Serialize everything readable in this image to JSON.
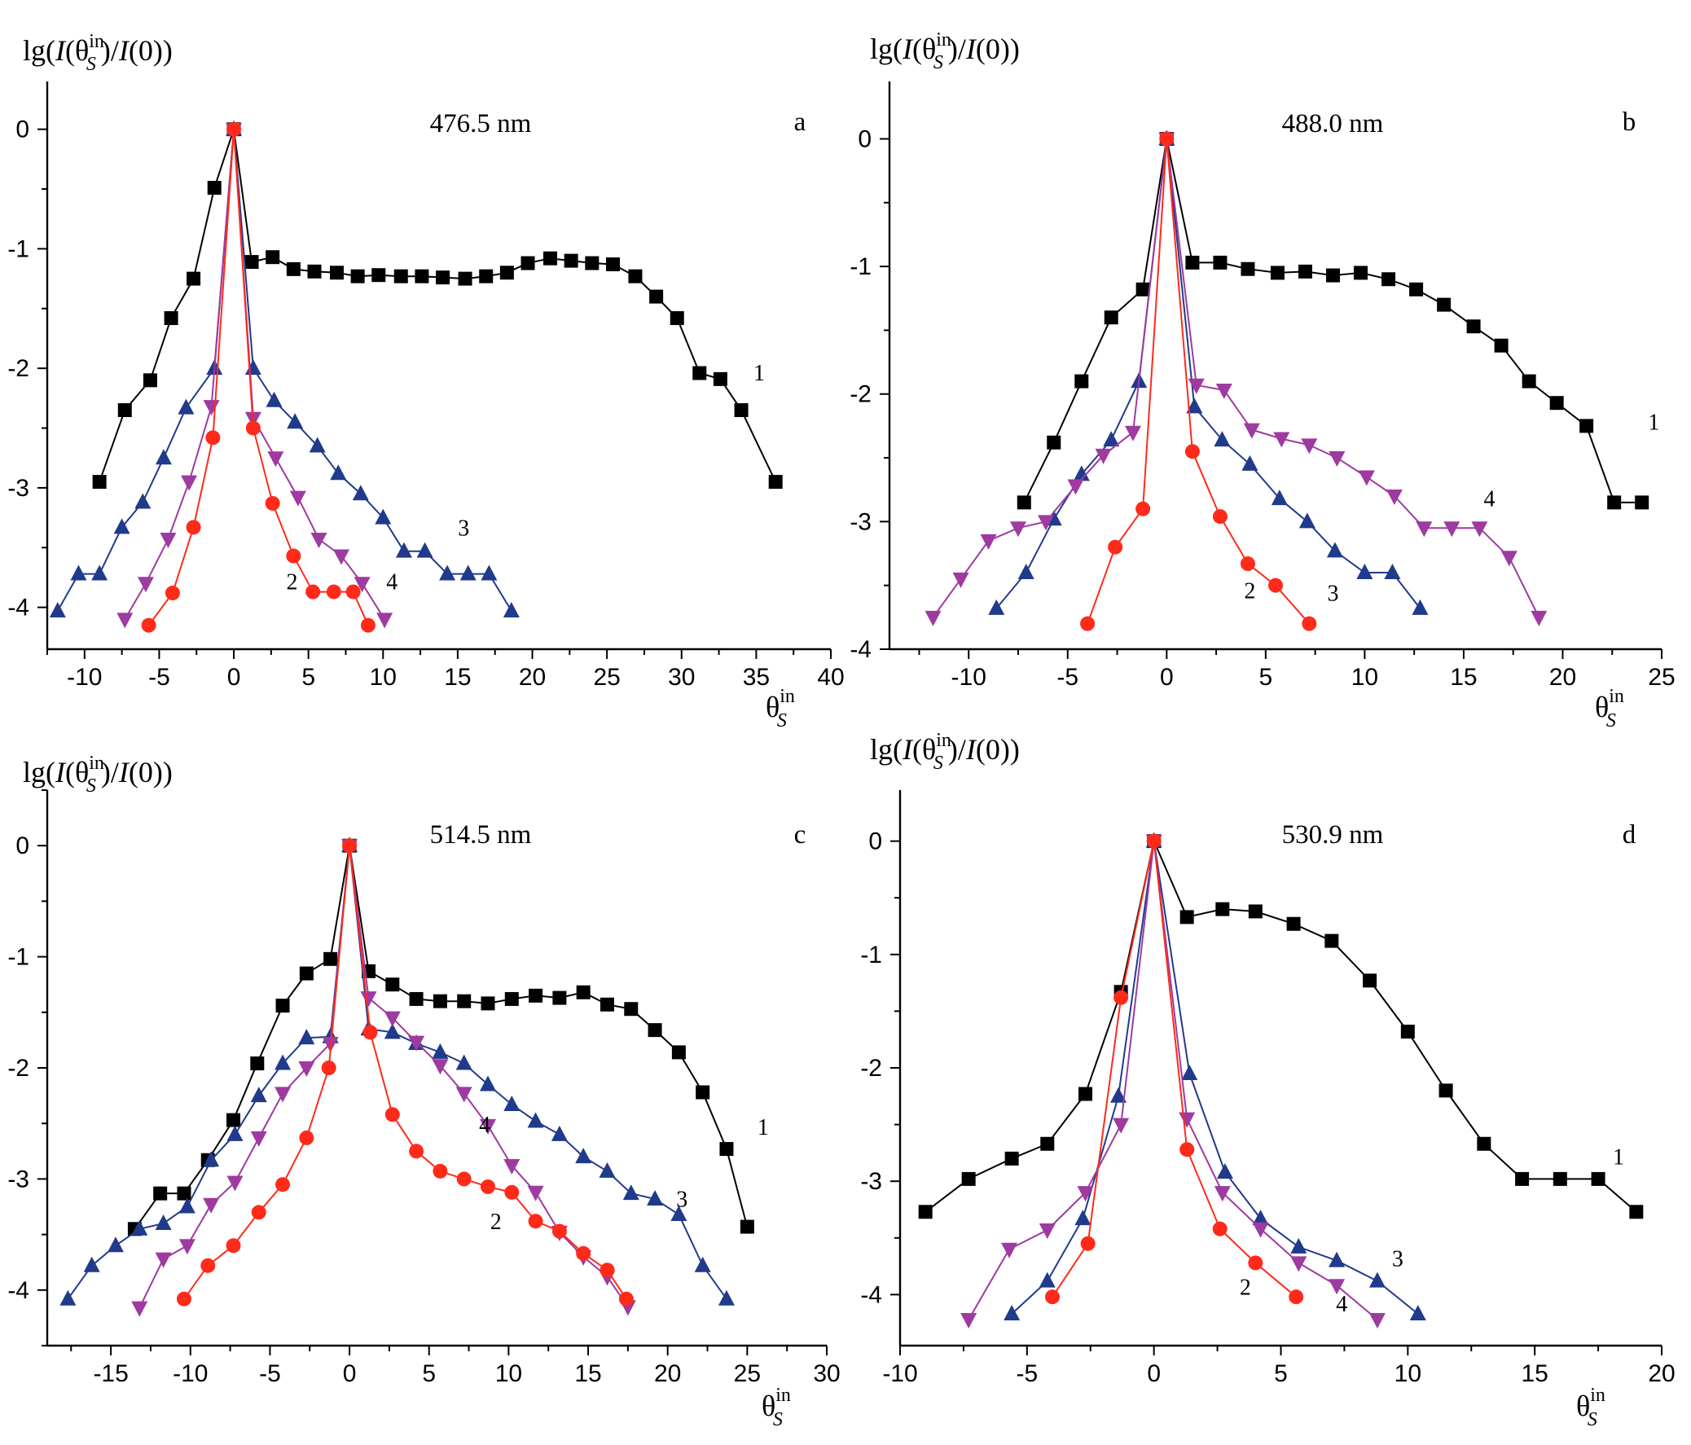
{
  "chart_data": [
    {
      "type": "line",
      "panel_letter": "a",
      "wavelength_label": "476.5 nm",
      "ylabel": {
        "prefix": "lg(",
        "italic_I": "I",
        "open": "(θ",
        "sup": "in",
        "sub": "S",
        "close": ")/",
        "italic_I2": "I",
        "tail": "(0))"
      },
      "xlabel": {
        "base": "θ",
        "sup": "in",
        "sub": "S"
      },
      "xlim": [
        -12.5,
        40
      ],
      "ylim": [
        -4.35,
        0.4
      ],
      "xticks": [
        -10,
        -5,
        0,
        5,
        10,
        15,
        20,
        25,
        30,
        35,
        40
      ],
      "xtick_labels": [
        "-10",
        "-5",
        "0",
        "5",
        "10",
        "15",
        "20",
        "25",
        "30",
        "35",
        "40"
      ],
      "yticks": [
        0,
        -1,
        -2,
        -3,
        -4
      ],
      "ytick_labels": [
        "0",
        "-1",
        "-2",
        "-3",
        "-4"
      ],
      "series": [
        {
          "name": "1",
          "color": "#000000",
          "marker": "square",
          "x": [
            -9,
            -7.3,
            -5.6,
            -4.2,
            -2.7,
            -1.3,
            0,
            1.2,
            2.6,
            4,
            5.4,
            6.9,
            8.3,
            9.7,
            11.2,
            12.6,
            14,
            15.5,
            16.9,
            18.3,
            19.7,
            21.2,
            22.6,
            24,
            25.4,
            26.9,
            28.3,
            29.7,
            31.2,
            32.6,
            34,
            36.3
          ],
          "y": [
            -2.95,
            -2.35,
            -2.1,
            -1.58,
            -1.25,
            -0.49,
            0,
            -1.11,
            -1.07,
            -1.17,
            -1.19,
            -1.2,
            -1.23,
            -1.22,
            -1.23,
            -1.23,
            -1.24,
            -1.25,
            -1.23,
            -1.2,
            -1.12,
            -1.08,
            -1.1,
            -1.12,
            -1.13,
            -1.23,
            -1.4,
            -1.58,
            -2.04,
            -2.09,
            -2.35,
            -2.95
          ]
        },
        {
          "name": "2",
          "color": "#ff2a1a",
          "marker": "circle",
          "x": [
            -5.7,
            -4.1,
            -2.7,
            -1.4,
            0,
            1.3,
            2.6,
            4,
            5.3,
            6.7,
            8,
            9
          ],
          "y": [
            -4.15,
            -3.88,
            -3.33,
            -2.58,
            0,
            -2.5,
            -3.13,
            -3.57,
            -3.87,
            -3.87,
            -3.87,
            -4.15
          ]
        },
        {
          "name": "3",
          "color": "#203a8c",
          "marker": "triangle-up",
          "x": [
            -11.8,
            -10.4,
            -9,
            -7.5,
            -6.1,
            -4.7,
            -3.2,
            -1.3,
            0,
            1.3,
            2.7,
            4.1,
            5.6,
            7,
            8.5,
            10,
            11.4,
            12.8,
            14.3,
            15.7,
            17.1,
            18.6
          ],
          "y": [
            -4.03,
            -3.72,
            -3.72,
            -3.33,
            -3.12,
            -2.75,
            -2.33,
            -2.0,
            0,
            -2.0,
            -2.27,
            -2.45,
            -2.65,
            -2.88,
            -3.05,
            -3.25,
            -3.53,
            -3.53,
            -3.72,
            -3.72,
            -3.72,
            -4.03
          ]
        },
        {
          "name": "4",
          "color": "#9e3aa0",
          "marker": "triangle-down",
          "x": [
            -7.3,
            -5.9,
            -4.4,
            -3,
            -1.5,
            0,
            1.3,
            2.8,
            4.3,
            5.7,
            7.2,
            8.6,
            10.1
          ],
          "y": [
            -4.1,
            -3.8,
            -3.43,
            -2.95,
            -2.32,
            0,
            -2.42,
            -2.75,
            -3.08,
            -3.43,
            -3.57,
            -3.8,
            -4.1
          ]
        }
      ],
      "series_labels": [
        {
          "text": "1",
          "x": 35.2,
          "y": -2.1
        },
        {
          "text": "2",
          "x": 3.9,
          "y": -3.85
        },
        {
          "text": "3",
          "x": 15.4,
          "y": -3.4
        },
        {
          "text": "4",
          "x": 10.6,
          "y": -3.85
        }
      ]
    },
    {
      "type": "line",
      "panel_letter": "b",
      "wavelength_label": "488.0 nm",
      "ylabel": {
        "prefix": "lg(",
        "italic_I": "I",
        "open": "(θ",
        "sup": "in",
        "sub": "S",
        "close": ")/",
        "italic_I2": "I",
        "tail": "(0))"
      },
      "xlabel": {
        "base": "θ",
        "sup": "in",
        "sub": "S"
      },
      "xlim": [
        -14,
        25
      ],
      "ylim": [
        -4.0,
        0.45
      ],
      "xticks": [
        -10,
        -5,
        0,
        5,
        10,
        15,
        20,
        25
      ],
      "xtick_labels": [
        "-10",
        "-5",
        "0",
        "5",
        "10",
        "15",
        "20",
        "25"
      ],
      "yticks": [
        0,
        -1,
        -2,
        -3,
        -4
      ],
      "ytick_labels": [
        "0",
        "-1",
        "-2",
        "-3",
        "-4"
      ],
      "series": [
        {
          "name": "1",
          "color": "#000000",
          "marker": "square",
          "x": [
            -7.2,
            -5.7,
            -4.3,
            -2.8,
            -1.2,
            0,
            1.3,
            2.7,
            4.1,
            5.6,
            7,
            8.4,
            9.8,
            11.2,
            12.6,
            14,
            15.5,
            16.9,
            18.3,
            19.7,
            21.2,
            22.6,
            24
          ],
          "y": [
            -2.85,
            -2.38,
            -1.9,
            -1.4,
            -1.18,
            0,
            -0.97,
            -0.97,
            -1.02,
            -1.05,
            -1.04,
            -1.07,
            -1.05,
            -1.1,
            -1.18,
            -1.3,
            -1.47,
            -1.62,
            -1.9,
            -2.07,
            -2.25,
            -2.85,
            -2.85
          ]
        },
        {
          "name": "2",
          "color": "#ff2a1a",
          "marker": "circle",
          "x": [
            -4,
            -2.6,
            -1.2,
            0,
            1.3,
            2.7,
            4.1,
            5.5,
            7.2
          ],
          "y": [
            -3.8,
            -3.2,
            -2.9,
            0,
            -2.45,
            -2.96,
            -3.33,
            -3.5,
            -3.8
          ]
        },
        {
          "name": "3",
          "color": "#203a8c",
          "marker": "triangle-up",
          "x": [
            -8.6,
            -7.1,
            -5.7,
            -4.3,
            -2.8,
            -1.4,
            0,
            1.4,
            2.8,
            4.2,
            5.7,
            7.1,
            8.5,
            10,
            11.4,
            12.8
          ],
          "y": [
            -3.68,
            -3.4,
            -2.98,
            -2.63,
            -2.36,
            -1.9,
            0,
            -2.1,
            -2.36,
            -2.55,
            -2.82,
            -3.0,
            -3.23,
            -3.4,
            -3.4,
            -3.68
          ]
        },
        {
          "name": "4",
          "color": "#9e3aa0",
          "marker": "triangle-down",
          "x": [
            -11.8,
            -10.4,
            -9,
            -7.5,
            -6.1,
            -4.6,
            -3.2,
            -1.7,
            0,
            1.5,
            2.9,
            4.3,
            5.8,
            7.2,
            8.6,
            10.1,
            11.5,
            13,
            14.4,
            15.8,
            17.3,
            18.8
          ],
          "y": [
            -3.75,
            -3.45,
            -3.15,
            -3.05,
            -3.0,
            -2.72,
            -2.48,
            -2.3,
            0,
            -1.93,
            -1.97,
            -2.28,
            -2.35,
            -2.4,
            -2.5,
            -2.65,
            -2.8,
            -3.05,
            -3.05,
            -3.05,
            -3.28,
            -3.75
          ]
        }
      ],
      "series_labels": [
        {
          "text": "1",
          "x": 24.6,
          "y": -2.28
        },
        {
          "text": "2",
          "x": 4.2,
          "y": -3.6
        },
        {
          "text": "3",
          "x": 8.4,
          "y": -3.62
        },
        {
          "text": "4",
          "x": 16.3,
          "y": -2.88
        }
      ]
    },
    {
      "type": "line",
      "panel_letter": "c",
      "wavelength_label": "514.5 nm",
      "ylabel": {
        "prefix": "lg(",
        "italic_I": "I",
        "open": "(θ",
        "sup": "in",
        "sub": "S",
        "close": ")/",
        "italic_I2": "I",
        "tail": "(0))"
      },
      "xlabel": {
        "base": "θ",
        "sup": "in",
        "sub": "S"
      },
      "xlim": [
        -19,
        30
      ],
      "ylim": [
        -4.5,
        0.5
      ],
      "xticks": [
        -15,
        -10,
        -5,
        0,
        5,
        10,
        15,
        20,
        25,
        30
      ],
      "xtick_labels": [
        "-15",
        "-10",
        "-5",
        "0",
        "5",
        "10",
        "15",
        "20",
        "25",
        "30"
      ],
      "yticks": [
        0,
        -1,
        -2,
        -3,
        -4
      ],
      "ytick_labels": [
        "0",
        "-1",
        "-2",
        "-3",
        "-4"
      ],
      "series": [
        {
          "name": "1",
          "color": "#000000",
          "marker": "square",
          "x": [
            -13.5,
            -11.9,
            -10.4,
            -8.9,
            -7.3,
            -5.8,
            -4.2,
            -2.7,
            -1.2,
            0,
            1.2,
            2.7,
            4.2,
            5.7,
            7.2,
            8.7,
            10.2,
            11.7,
            13.2,
            14.7,
            16.2,
            17.7,
            19.2,
            20.7,
            22.2,
            23.7,
            25
          ],
          "y": [
            -3.45,
            -3.13,
            -3.13,
            -2.83,
            -2.47,
            -1.96,
            -1.44,
            -1.15,
            -1.02,
            0,
            -1.13,
            -1.25,
            -1.38,
            -1.4,
            -1.4,
            -1.42,
            -1.38,
            -1.35,
            -1.37,
            -1.32,
            -1.43,
            -1.47,
            -1.66,
            -1.86,
            -2.22,
            -2.73,
            -3.43
          ]
        },
        {
          "name": "2",
          "color": "#ff2a1a",
          "marker": "circle",
          "x": [
            -10.4,
            -8.9,
            -7.3,
            -5.7,
            -4.2,
            -2.7,
            -1.3,
            0,
            1.3,
            2.7,
            4.2,
            5.7,
            7.2,
            8.7,
            10.2,
            11.7,
            13.2,
            14.7,
            16.2,
            17.4
          ],
          "y": [
            -4.08,
            -3.78,
            -3.6,
            -3.3,
            -3.05,
            -2.63,
            -2.0,
            0,
            -1.68,
            -2.42,
            -2.75,
            -2.93,
            -3.0,
            -3.07,
            -3.12,
            -3.38,
            -3.47,
            -3.67,
            -3.82,
            -4.08
          ]
        },
        {
          "name": "3",
          "color": "#203a8c",
          "marker": "triangle-up",
          "x": [
            -17.7,
            -16.2,
            -14.7,
            -13.2,
            -11.7,
            -10.2,
            -8.7,
            -7.2,
            -5.7,
            -4.2,
            -2.7,
            -1.2,
            0,
            1.2,
            2.7,
            4.2,
            5.7,
            7.2,
            8.7,
            10.2,
            11.7,
            13.2,
            14.7,
            16.2,
            17.7,
            19.2,
            20.7,
            22.2,
            23.7
          ],
          "y": [
            -4.08,
            -3.78,
            -3.6,
            -3.45,
            -3.4,
            -3.25,
            -2.83,
            -2.6,
            -2.25,
            -1.96,
            -1.73,
            -1.72,
            0,
            -1.65,
            -1.68,
            -1.78,
            -1.86,
            -1.96,
            -2.15,
            -2.33,
            -2.48,
            -2.6,
            -2.8,
            -2.93,
            -3.13,
            -3.18,
            -3.32,
            -3.78,
            -4.08
          ]
        },
        {
          "name": "4",
          "color": "#9e3aa0",
          "marker": "triangle-down",
          "x": [
            -13.2,
            -11.7,
            -10.2,
            -8.7,
            -7.2,
            -5.7,
            -4.2,
            -2.7,
            -1.2,
            0,
            1.2,
            2.7,
            4.2,
            5.7,
            7.2,
            8.7,
            10.2,
            11.7,
            13.2,
            14.7,
            16.2,
            17.5
          ],
          "y": [
            -4.16,
            -3.72,
            -3.6,
            -3.23,
            -3.03,
            -2.63,
            -2.23,
            -2.0,
            -1.78,
            0,
            -1.37,
            -1.55,
            -1.77,
            -1.98,
            -2.23,
            -2.52,
            -2.88,
            -3.12,
            -3.48,
            -3.7,
            -3.88,
            -4.15
          ]
        }
      ],
      "series_labels": [
        {
          "text": "1",
          "x": 26,
          "y": -2.6
        },
        {
          "text": "2",
          "x": 9.2,
          "y": -3.45
        },
        {
          "text": "3",
          "x": 20.9,
          "y": -3.25
        },
        {
          "text": "4",
          "x": 8.5,
          "y": -2.58
        }
      ]
    },
    {
      "type": "line",
      "panel_letter": "d",
      "wavelength_label": "530.9 nm",
      "ylabel": {
        "prefix": "lg(",
        "italic_I": "I",
        "open": "(θ",
        "sup": "in",
        "sub": "S",
        "close": ")/",
        "italic_I2": "I",
        "tail": "(0))"
      },
      "xlabel": {
        "base": "θ",
        "sup": "in",
        "sub": "S"
      },
      "xlim": [
        -10,
        20
      ],
      "ylim": [
        -4.45,
        0.45
      ],
      "xticks": [
        -10,
        -5,
        0,
        5,
        10,
        15,
        20
      ],
      "xtick_labels": [
        "-10",
        "-5",
        "0",
        "5",
        "10",
        "15",
        "20"
      ],
      "yticks": [
        0,
        -1,
        -2,
        -3,
        -4
      ],
      "ytick_labels": [
        "0",
        "-1",
        "-2",
        "-3",
        "-4"
      ],
      "series": [
        {
          "name": "1",
          "color": "#000000",
          "marker": "square",
          "x": [
            -9,
            -7.3,
            -5.6,
            -4.2,
            -2.7,
            -1.3,
            0,
            1.3,
            2.7,
            4,
            5.5,
            7,
            8.5,
            10,
            11.5,
            13,
            14.5,
            16,
            17.5,
            19
          ],
          "y": [
            -3.27,
            -2.98,
            -2.8,
            -2.67,
            -2.23,
            -1.33,
            0,
            -0.67,
            -0.6,
            -0.62,
            -0.73,
            -0.88,
            -1.23,
            -1.68,
            -2.2,
            -2.67,
            -2.98,
            -2.98,
            -2.98,
            -3.27
          ]
        },
        {
          "name": "2",
          "color": "#ff2a1a",
          "marker": "circle",
          "x": [
            -4,
            -2.6,
            -1.3,
            0,
            1.3,
            2.6,
            4,
            5.6
          ],
          "y": [
            -4.02,
            -3.55,
            -1.38,
            0,
            -2.72,
            -3.42,
            -3.72,
            -4.02
          ]
        },
        {
          "name": "3",
          "color": "#203a8c",
          "marker": "triangle-up",
          "x": [
            -5.6,
            -4.2,
            -2.8,
            -1.4,
            0,
            1.4,
            2.8,
            4.2,
            5.7,
            7.2,
            8.8,
            10.4
          ],
          "y": [
            -4.17,
            -3.88,
            -3.33,
            -2.25,
            0,
            -2.05,
            -2.92,
            -3.33,
            -3.58,
            -3.7,
            -3.88,
            -4.17
          ]
        },
        {
          "name": "4",
          "color": "#9e3aa0",
          "marker": "triangle-down",
          "x": [
            -7.3,
            -5.7,
            -4.2,
            -2.7,
            -1.3,
            0,
            1.3,
            2.7,
            4.2,
            5.7,
            7.2,
            8.8
          ],
          "y": [
            -4.22,
            -3.6,
            -3.43,
            -3.1,
            -2.5,
            0,
            -2.45,
            -3.1,
            -3.42,
            -3.72,
            -3.92,
            -4.22
          ]
        }
      ],
      "series_labels": [
        {
          "text": "1",
          "x": 18.3,
          "y": -2.85
        },
        {
          "text": "2",
          "x": 3.6,
          "y": -4.0
        },
        {
          "text": "3",
          "x": 9.6,
          "y": -3.75
        },
        {
          "text": "4",
          "x": 7.4,
          "y": -4.15
        }
      ]
    }
  ]
}
